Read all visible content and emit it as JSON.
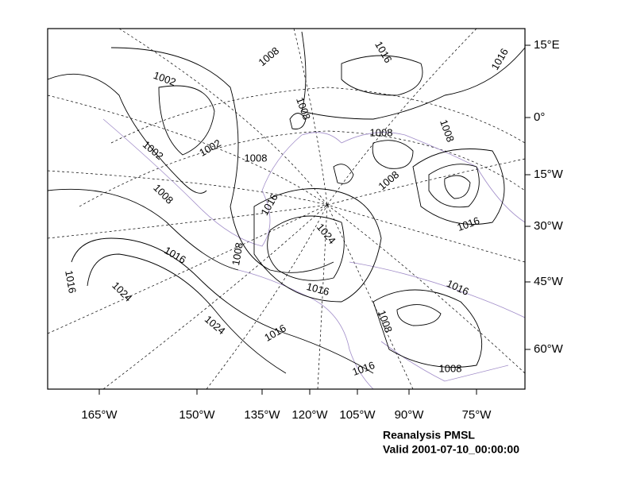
{
  "map": {
    "right_labels": [
      "15°E",
      "0°",
      "15°W",
      "30°W",
      "45°W",
      "60°W"
    ],
    "bottom_labels": [
      "165°W",
      "150°W",
      "135°W",
      "120°W",
      "105°W",
      "90°W",
      "75°W"
    ],
    "contour_labels": [
      "1002",
      "1008",
      "1016",
      "1016",
      "1008",
      "1008",
      "1008",
      "1002",
      "1008",
      "1002",
      "1008",
      "1008",
      "1016",
      "1024",
      "1016",
      "1016",
      "1008",
      "1016",
      "1024",
      "1016",
      "1016",
      "1024",
      "1016",
      "1008",
      "1016",
      "1008"
    ],
    "title": "Reanalysis PMSL",
    "subtitle": "Valid 2001-07-10_00:00:00"
  }
}
